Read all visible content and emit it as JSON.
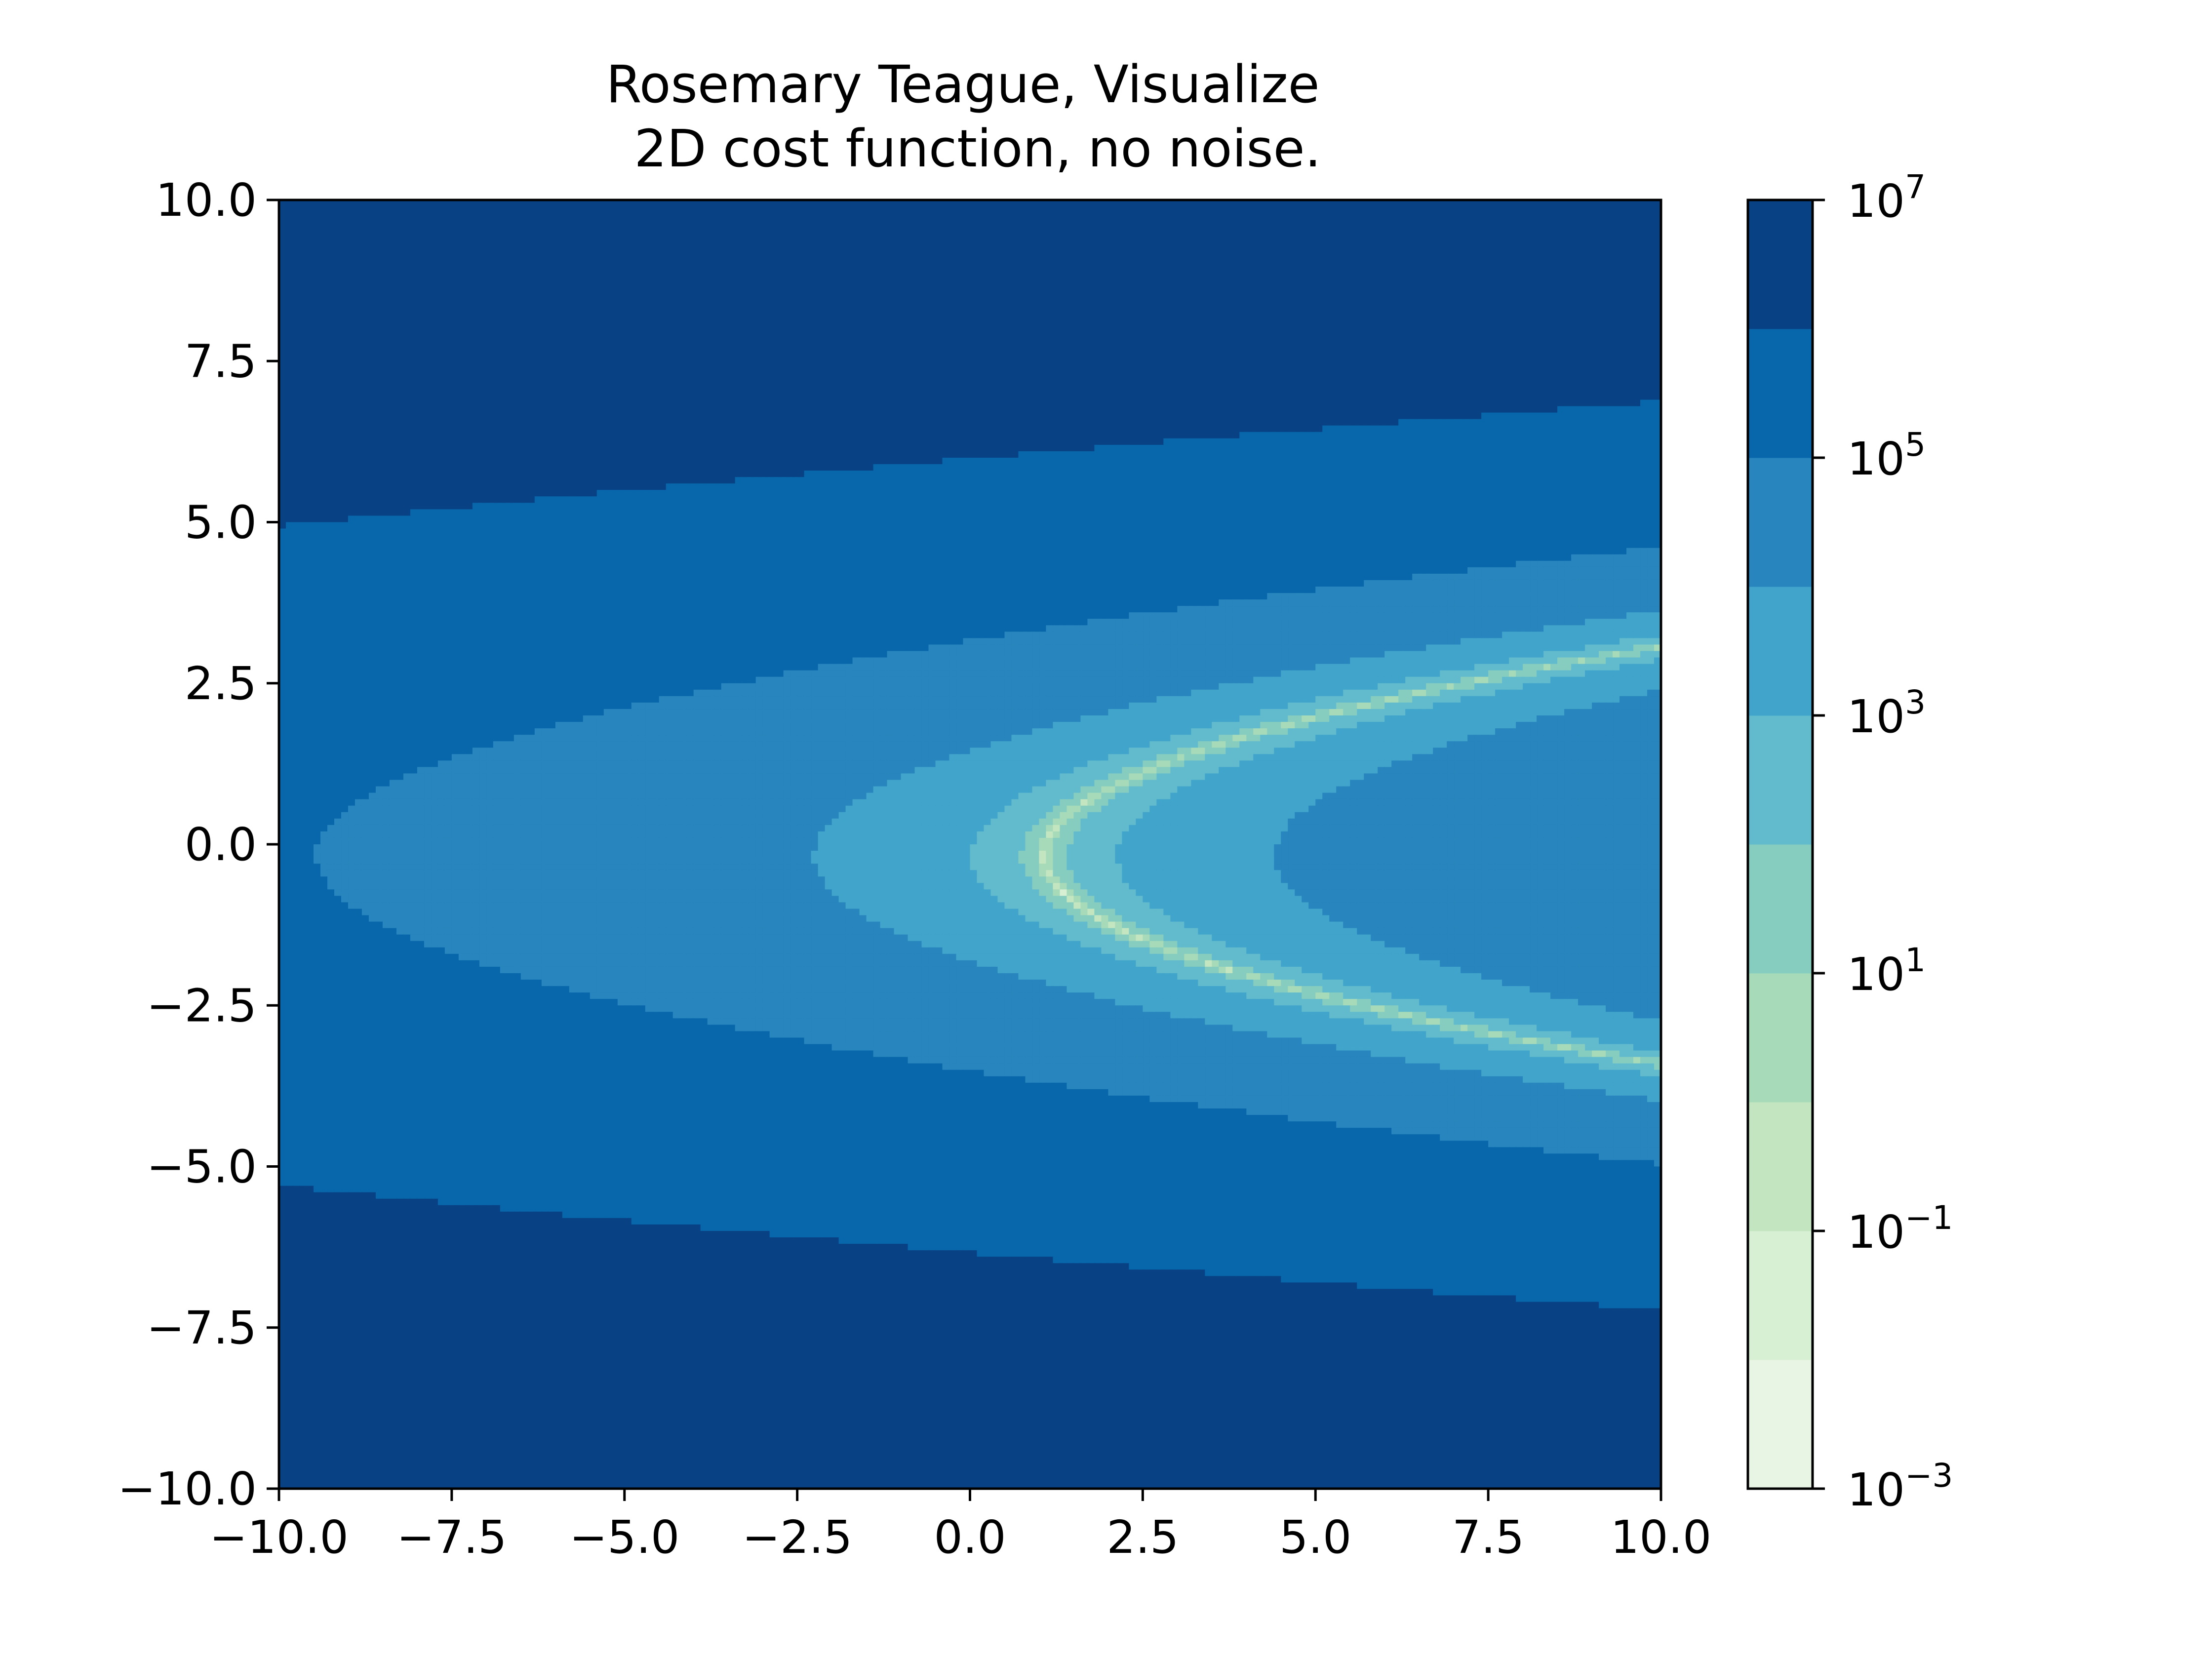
{
  "chart_data": {
    "type": "contour",
    "title_lines": [
      "Rosemary Teague, Visualize",
      "2D cost function, no noise."
    ],
    "xlabel": "",
    "ylabel": "",
    "xlim": [
      -10.0,
      10.0
    ],
    "ylim": [
      -10.0,
      10.0
    ],
    "x_ticks": [
      "−10.0",
      "−7.5",
      "−5.0",
      "−2.5",
      "0.0",
      "2.5",
      "5.0",
      "7.5",
      "10.0"
    ],
    "x_tick_values": [
      -10,
      -7.5,
      -5,
      -2.5,
      0,
      2.5,
      5,
      7.5,
      10
    ],
    "y_ticks": [
      "−10.0",
      "−7.5",
      "−5.0",
      "−2.5",
      "0.0",
      "2.5",
      "5.0",
      "7.5",
      "10.0"
    ],
    "y_tick_values": [
      -10,
      -7.5,
      -5,
      -2.5,
      0,
      2.5,
      5,
      7.5,
      10
    ],
    "colormap": "GnBu",
    "colorbar": {
      "scale": "log",
      "range_exponents": [
        -3,
        7
      ],
      "level_exponents": [
        -3,
        -2,
        -1,
        0,
        1,
        2,
        3,
        4,
        5,
        6,
        7
      ],
      "tick_exponents": [
        -3,
        -1,
        1,
        3,
        5,
        7
      ],
      "tick_labels": [
        {
          "base": "10",
          "exp": "−3"
        },
        {
          "base": "10",
          "exp": "−1"
        },
        {
          "base": "10",
          "exp": "1"
        },
        {
          "base": "10",
          "exp": "3"
        },
        {
          "base": "10",
          "exp": "5"
        },
        {
          "base": "10",
          "exp": "7"
        }
      ],
      "band_colors": [
        "#e8f4e4",
        "#d7efd3",
        "#c3e6c1",
        "#a7dab8",
        "#86cdc0",
        "#62bbcd",
        "#41a4cb",
        "#2885bd",
        "#0867ab",
        "#084284"
      ]
    },
    "function_note": "skewed banana-shaped valley with minimum near (1, 0)"
  }
}
